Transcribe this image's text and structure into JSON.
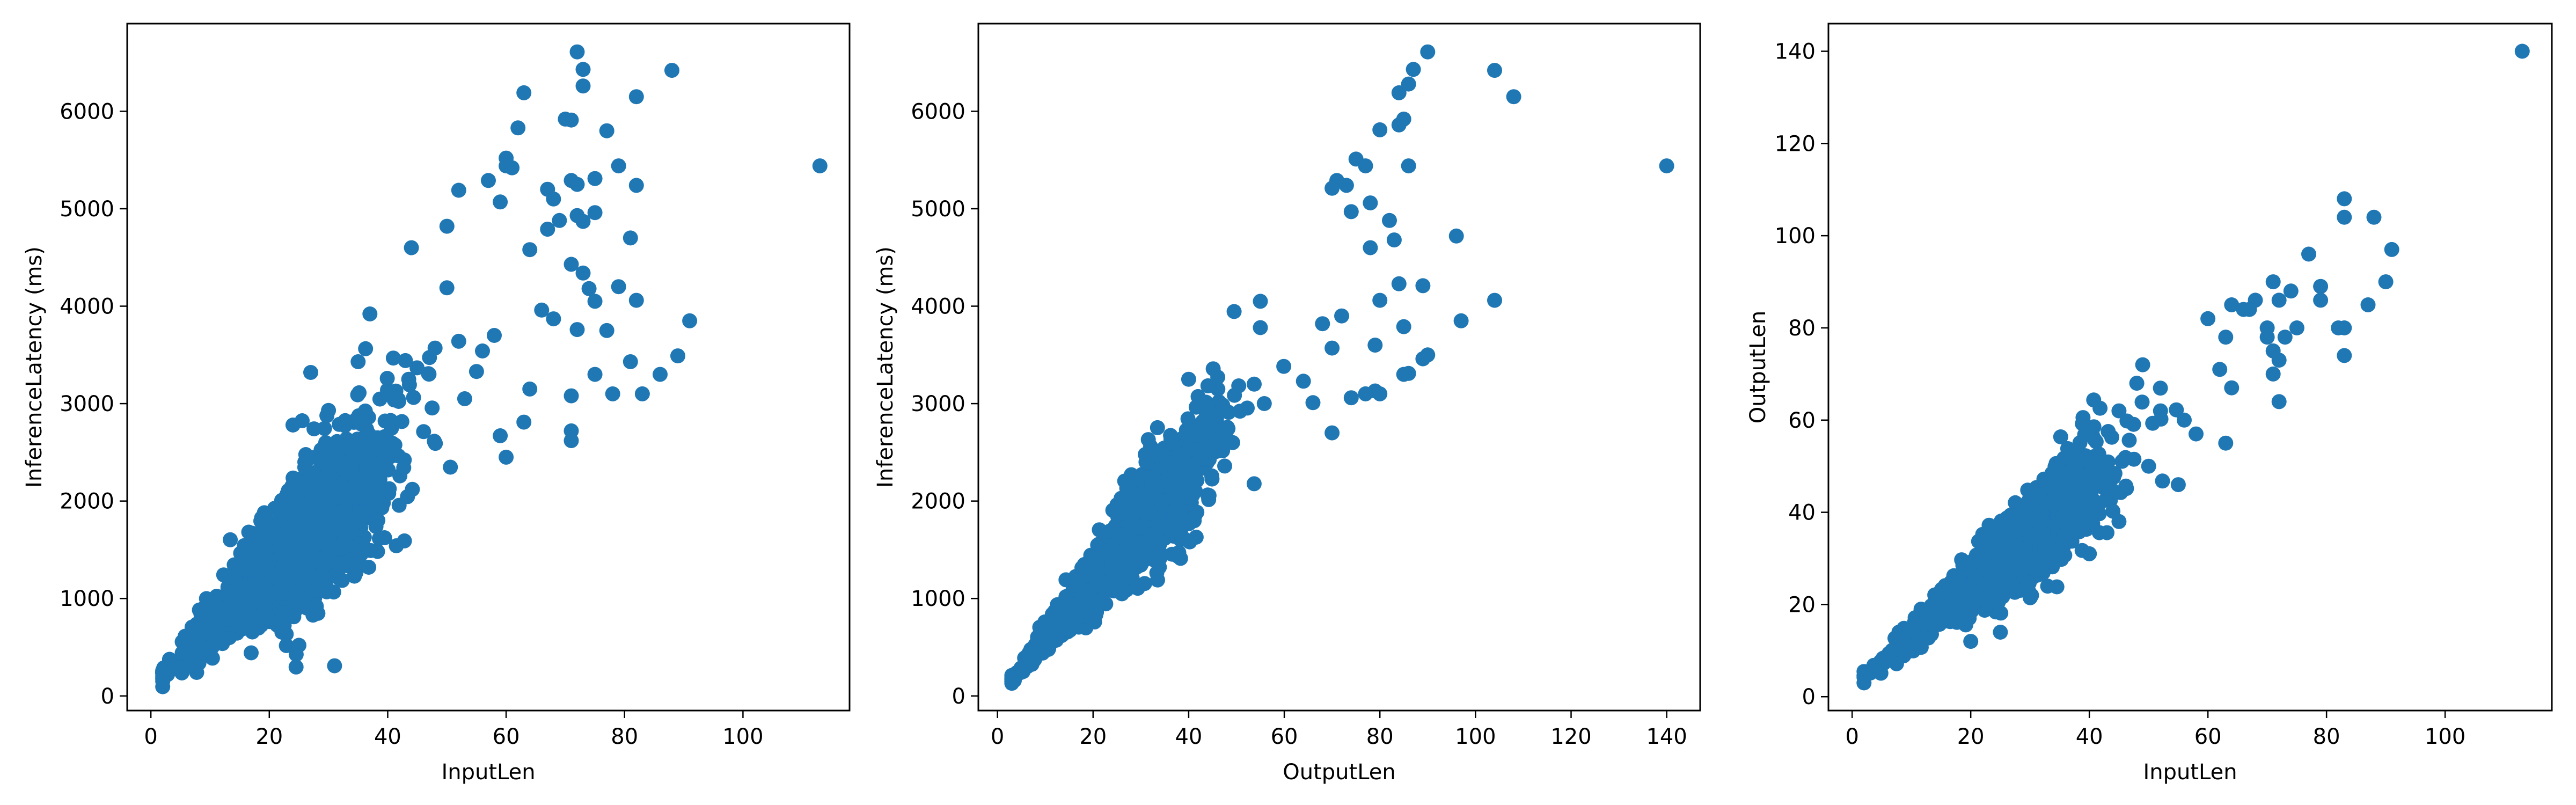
{
  "figure": {
    "background": "#ffffff",
    "marker_color": "#1f77b4"
  },
  "chart_data": [
    {
      "type": "scatter",
      "title": "",
      "xlabel": "InputLen",
      "ylabel": "InferenceLatency (ms)",
      "xlim": [
        -4,
        118
      ],
      "ylim": [
        -150,
        6900
      ],
      "xticks": [
        0,
        20,
        40,
        60,
        80,
        100
      ],
      "yticks": [
        0,
        1000,
        2000,
        3000,
        4000,
        5000,
        6000
      ],
      "grid": false,
      "legend": "none",
      "cloud": {
        "slope": 58,
        "intercept": 120,
        "spread": 0.2,
        "x_center": 22,
        "x_scale": 9,
        "x_min": 2,
        "x_max": 60,
        "count": 1600
      },
      "points": [
        [
          2,
          150
        ],
        [
          113,
          5440
        ],
        [
          72,
          6610
        ],
        [
          73,
          6430
        ],
        [
          73,
          6260
        ],
        [
          88,
          6420
        ],
        [
          82,
          6150
        ],
        [
          63,
          6190
        ],
        [
          70,
          5920
        ],
        [
          71,
          5910
        ],
        [
          77,
          5800
        ],
        [
          62,
          5830
        ],
        [
          60,
          5520
        ],
        [
          60,
          5440
        ],
        [
          61,
          5420
        ],
        [
          79,
          5440
        ],
        [
          71,
          5290
        ],
        [
          72,
          5250
        ],
        [
          75,
          5310
        ],
        [
          82,
          5240
        ],
        [
          67,
          5200
        ],
        [
          68,
          5100
        ],
        [
          57,
          5290
        ],
        [
          52,
          5190
        ],
        [
          59,
          5070
        ],
        [
          72,
          4930
        ],
        [
          73,
          4870
        ],
        [
          75,
          4960
        ],
        [
          67,
          4790
        ],
        [
          69,
          4880
        ],
        [
          81,
          4700
        ],
        [
          50,
          4820
        ],
        [
          44,
          4600
        ],
        [
          64,
          4580
        ],
        [
          71,
          4430
        ],
        [
          73,
          4340
        ],
        [
          74,
          4180
        ],
        [
          79,
          4200
        ],
        [
          82,
          4060
        ],
        [
          91,
          3850
        ],
        [
          75,
          4050
        ],
        [
          66,
          3960
        ],
        [
          68,
          3870
        ],
        [
          77,
          3750
        ],
        [
          72,
          3760
        ],
        [
          81,
          3430
        ],
        [
          89,
          3490
        ],
        [
          86,
          3300
        ],
        [
          75,
          3300
        ],
        [
          78,
          3100
        ],
        [
          83,
          3100
        ],
        [
          71,
          3080
        ],
        [
          71,
          2720
        ],
        [
          71,
          2620
        ],
        [
          64,
          3150
        ],
        [
          63,
          2810
        ],
        [
          59,
          2670
        ],
        [
          60,
          2450
        ],
        [
          58,
          3700
        ],
        [
          56,
          3540
        ],
        [
          55,
          3330
        ],
        [
          27,
          3320
        ],
        [
          24,
          2780
        ],
        [
          25,
          520
        ],
        [
          37,
          3920
        ],
        [
          35,
          3430
        ],
        [
          30,
          2930
        ],
        [
          48,
          3570
        ],
        [
          52,
          3640
        ],
        [
          53,
          3050
        ]
      ]
    },
    {
      "type": "scatter",
      "title": "",
      "xlabel": "OutputLen",
      "ylabel": "InferenceLatency (ms)",
      "xlim": [
        -4,
        147
      ],
      "ylim": [
        -150,
        6900
      ],
      "xticks": [
        0,
        20,
        40,
        60,
        80,
        100,
        120,
        140
      ],
      "yticks": [
        0,
        1000,
        2000,
        3000,
        4000,
        5000,
        6000
      ],
      "grid": false,
      "legend": "none",
      "cloud": {
        "slope": 58,
        "intercept": 0,
        "spread": 0.13,
        "x_center": 24,
        "x_scale": 10,
        "x_min": 3,
        "x_max": 70,
        "count": 1600
      },
      "points": [
        [
          3,
          150
        ],
        [
          140,
          5440
        ],
        [
          90,
          6610
        ],
        [
          104,
          6420
        ],
        [
          108,
          6150
        ],
        [
          87,
          6430
        ],
        [
          86,
          6280
        ],
        [
          84,
          6190
        ],
        [
          85,
          5920
        ],
        [
          84,
          5860
        ],
        [
          80,
          5810
        ],
        [
          75,
          5510
        ],
        [
          77,
          5440
        ],
        [
          86,
          5440
        ],
        [
          71,
          5290
        ],
        [
          73,
          5240
        ],
        [
          70,
          5210
        ],
        [
          78,
          5060
        ],
        [
          74,
          4970
        ],
        [
          82,
          4880
        ],
        [
          96,
          4720
        ],
        [
          83,
          4680
        ],
        [
          78,
          4600
        ],
        [
          84,
          4230
        ],
        [
          89,
          4210
        ],
        [
          104,
          4060
        ],
        [
          80,
          4060
        ],
        [
          97,
          3850
        ],
        [
          85,
          3790
        ],
        [
          79,
          3600
        ],
        [
          90,
          3500
        ],
        [
          89,
          3460
        ],
        [
          86,
          3310
        ],
        [
          85,
          3300
        ],
        [
          79,
          3130
        ],
        [
          80,
          3100
        ],
        [
          77,
          3100
        ],
        [
          74,
          3060
        ],
        [
          70,
          2700
        ],
        [
          64,
          3230
        ],
        [
          66,
          3010
        ],
        [
          70,
          3570
        ],
        [
          72,
          3900
        ],
        [
          68,
          3820
        ],
        [
          55,
          3780
        ],
        [
          55,
          4050
        ],
        [
          28,
          2270
        ],
        [
          40,
          3250
        ]
      ]
    },
    {
      "type": "scatter",
      "title": "",
      "xlabel": "InputLen",
      "ylabel": "OutputLen",
      "xlim": [
        -4,
        118
      ],
      "ylim": [
        -3,
        146
      ],
      "xticks": [
        0,
        20,
        40,
        60,
        80,
        100
      ],
      "yticks": [
        0,
        20,
        40,
        60,
        80,
        100,
        120,
        140
      ],
      "grid": false,
      "legend": "none",
      "cloud": {
        "slope": 1.1,
        "intercept": 2,
        "spread": 0.13,
        "x_center": 24,
        "x_scale": 9,
        "x_min": 2,
        "x_max": 65,
        "count": 1600
      },
      "points": [
        [
          2,
          3
        ],
        [
          113,
          140
        ],
        [
          83,
          108
        ],
        [
          83,
          104
        ],
        [
          88,
          104
        ],
        [
          91,
          97
        ],
        [
          77,
          96
        ],
        [
          87,
          85
        ],
        [
          90,
          90
        ],
        [
          79,
          89
        ],
        [
          79,
          86
        ],
        [
          74,
          88
        ],
        [
          71,
          90
        ],
        [
          72,
          86
        ],
        [
          68,
          86
        ],
        [
          70,
          80
        ],
        [
          82,
          80
        ],
        [
          83,
          80
        ],
        [
          83,
          74
        ],
        [
          75,
          80
        ],
        [
          73,
          78
        ],
        [
          70,
          78
        ],
        [
          71,
          75
        ],
        [
          72,
          73
        ],
        [
          71,
          70
        ],
        [
          72,
          64
        ],
        [
          64,
          67
        ],
        [
          62,
          71
        ],
        [
          63,
          55
        ],
        [
          58,
          57
        ],
        [
          56,
          60
        ],
        [
          49,
          72
        ],
        [
          45,
          62
        ],
        [
          60,
          82
        ],
        [
          64,
          85
        ],
        [
          66,
          84
        ],
        [
          67,
          84
        ],
        [
          63,
          78
        ],
        [
          25,
          14
        ],
        [
          20,
          12
        ],
        [
          34,
          45
        ],
        [
          40,
          31
        ],
        [
          45,
          38
        ],
        [
          55,
          46
        ],
        [
          50,
          50
        ],
        [
          52,
          62
        ],
        [
          48,
          68
        ]
      ]
    }
  ]
}
